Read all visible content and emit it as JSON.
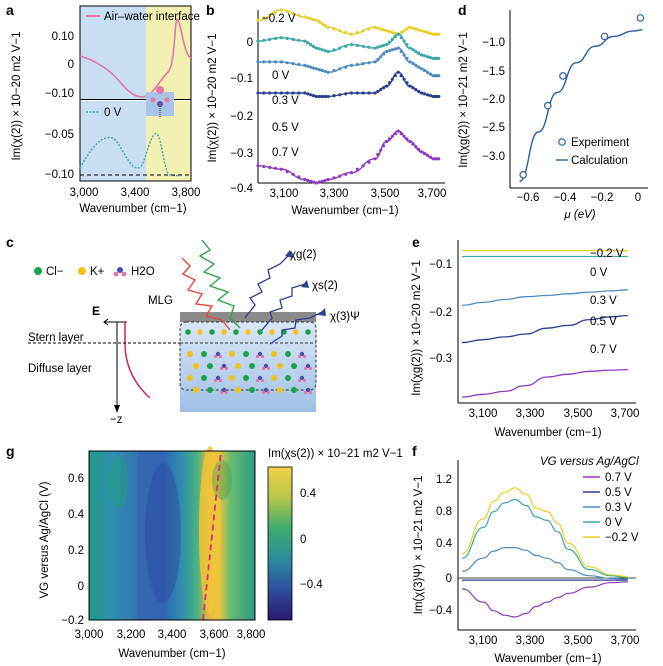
{
  "panels": {
    "a": {
      "label": "a",
      "ylabel": "Im(χ(2)) × 10−20 m2 V−1",
      "xlabel": "Wavenumber (cm−1)",
      "legend_top": "Air–water interface",
      "legend_bottom": "0 V",
      "xticks": [
        "3,000",
        "3,400",
        "3,800"
      ],
      "yticks_top": [
        "0.10",
        "0",
        "−0.10"
      ],
      "yticks_bottom": [
        "−0.05",
        "−0.10"
      ],
      "colors": {
        "air": "#e377a8",
        "zero": "#3aa8a6",
        "blue_bg": "#c9def3",
        "yellow_bg": "#f3f0b4"
      }
    },
    "b": {
      "label": "b",
      "ylabel": "Im(χ(2)) × 10−20 m2 V−1",
      "xlabel": "Wavenumber (cm−1)",
      "xticks": [
        "3,100",
        "3,300",
        "3,500",
        "3,700"
      ],
      "yticks": [
        "0",
        "−0.1",
        "−0.2",
        "−0.3",
        "−0.4"
      ],
      "series_labels": [
        "−0.2 V",
        "0 V",
        "0.3 V",
        "0.5 V",
        "0.7 V"
      ],
      "colors": [
        "#e6cf2a",
        "#3aa8a6",
        "#4e8bc4",
        "#2b3f92",
        "#8d3bbf"
      ]
    },
    "c": {
      "label": "c",
      "species": [
        "Cl−",
        "K+",
        "H2O"
      ],
      "mlg": "MLG",
      "e_label": "E",
      "stern": "Stern layer",
      "diffuse": "Diffuse layer",
      "zlabel": "−z",
      "chi_g": "χg(2)",
      "chi_s": "χs(2)",
      "chi3": "χ(3)Ψ",
      "colors": {
        "cl": "#1aa34a",
        "k": "#f2c21a",
        "water": "#e377a8",
        "field": "#c8285a"
      }
    },
    "d": {
      "label": "d",
      "ylabel": "Im(χg(2)) × 10−21 m2 V−1",
      "xlabel": "μ (eV)",
      "xticks": [
        "−0.6",
        "−0.4",
        "−0.2",
        "0"
      ],
      "yticks": [
        "−1.0",
        "−1.5",
        "−2.0",
        "−2.5",
        "−3.0"
      ],
      "legend": [
        "Experiment",
        "Calculation"
      ],
      "color": "#2b5fa8"
    },
    "e": {
      "label": "e",
      "ylabel": "Im(χg(2)) × 10−20 m2 V−1",
      "xlabel": "Wavenumber (cm−1)",
      "xticks": [
        "3,100",
        "3,300",
        "3,500",
        "3,700"
      ],
      "yticks": [
        "−0.1",
        "−0.2",
        "−0.3"
      ],
      "series_labels": [
        "−0.2 V",
        "0 V",
        "0.3 V",
        "0.5 V",
        "0.7 V"
      ],
      "colors": [
        "#e6cf2a",
        "#3aa8a6",
        "#4e8bc4",
        "#2b3f92",
        "#8d3bbf"
      ]
    },
    "f": {
      "label": "f",
      "title": "VG versus Ag/AgCl",
      "ylabel": "Im(χ(3)Ψ) × 10−21 m2 V−1",
      "xlabel": "Wavenumber (cm−1)",
      "xticks": [
        "3,100",
        "3,300",
        "3,500",
        "3,700"
      ],
      "yticks": [
        "1.2",
        "0.8",
        "0.4",
        "0",
        "−0.4"
      ],
      "legend": [
        "0.7 V",
        "0.5 V",
        "0.3 V",
        "0 V",
        "−0.2 V"
      ],
      "colors": [
        "#8d3bbf",
        "#2b3f92",
        "#4e8bc4",
        "#3aa8a6",
        "#e6cf2a"
      ]
    },
    "g": {
      "label": "g",
      "ylabel": "VG versus Ag/AgCl (V)",
      "xlabel": "Wavenumber (cm−1)",
      "xticks": [
        "3,000",
        "3,200",
        "3,400",
        "3,600",
        "3,800"
      ],
      "yticks": [
        "0.6",
        "0.4",
        "0.2",
        "0",
        "−0.2"
      ],
      "cbar_title": "Im(χs(2)) × 10−21 m2 V−1",
      "cbar_ticks": [
        "0.4",
        "0",
        "−0.4"
      ]
    }
  },
  "chart_data": [
    {
      "panel": "a",
      "type": "line",
      "series": [
        {
          "name": "Air–water interface",
          "x": [
            3000,
            3100,
            3200,
            3300,
            3400,
            3450,
            3500,
            3550,
            3600,
            3650,
            3680,
            3700,
            3720,
            3750,
            3780
          ],
          "values": [
            0.05,
            0.03,
            0.0,
            -0.04,
            -0.09,
            -0.1,
            -0.09,
            -0.07,
            -0.05,
            -0.02,
            0.02,
            0.12,
            0.05,
            -0.02,
            -0.03
          ]
        },
        {
          "name": "0 V",
          "x": [
            3000,
            3100,
            3200,
            3250,
            3300,
            3350,
            3400,
            3450,
            3500,
            3550,
            3600,
            3650,
            3700,
            3750
          ],
          "values": [
            -0.09,
            -0.065,
            -0.04,
            -0.035,
            -0.05,
            -0.075,
            -0.09,
            -0.085,
            -0.06,
            -0.04,
            -0.055,
            -0.08,
            -0.1,
            -0.1
          ]
        }
      ],
      "xlim": [
        3000,
        3800
      ]
    },
    {
      "panel": "b",
      "type": "line",
      "xlim": [
        3000,
        3800
      ],
      "ylim": [
        -0.45,
        0.05
      ],
      "x": [
        3000,
        3100,
        3200,
        3250,
        3300,
        3400,
        3500,
        3550,
        3600,
        3650,
        3700,
        3750,
        3780
      ],
      "series": [
        {
          "name": "−0.2 V",
          "values": [
            0.02,
            0.05,
            0.03,
            0.02,
            0.0,
            -0.02,
            0.0,
            -0.01,
            -0.02,
            0.0,
            -0.01,
            -0.02,
            -0.02
          ]
        },
        {
          "name": "0 V",
          "values": [
            -0.04,
            -0.03,
            -0.04,
            -0.06,
            -0.07,
            -0.05,
            -0.06,
            -0.05,
            -0.02,
            -0.06,
            -0.08,
            -0.09,
            -0.09
          ]
        },
        {
          "name": "0.3 V",
          "values": [
            -0.1,
            -0.1,
            -0.11,
            -0.12,
            -0.13,
            -0.11,
            -0.1,
            -0.07,
            -0.06,
            -0.1,
            -0.12,
            -0.14,
            -0.14
          ]
        },
        {
          "name": "0.5 V",
          "values": [
            -0.19,
            -0.19,
            -0.19,
            -0.2,
            -0.2,
            -0.19,
            -0.19,
            -0.17,
            -0.13,
            -0.17,
            -0.19,
            -0.2,
            -0.2
          ]
        },
        {
          "name": "0.7 V",
          "values": [
            -0.4,
            -0.41,
            -0.44,
            -0.45,
            -0.44,
            -0.42,
            -0.38,
            -0.33,
            -0.3,
            -0.33,
            -0.36,
            -0.38,
            -0.38
          ]
        }
      ]
    },
    {
      "panel": "d",
      "type": "scatter",
      "xlabel": "μ (eV)",
      "xlim": [
        -0.65,
        0.08
      ],
      "ylim": [
        -3.3,
        -0.6
      ],
      "series": [
        {
          "name": "Experiment",
          "x": [
            -0.58,
            -0.45,
            -0.37,
            -0.15,
            0.04
          ],
          "values": [
            -3.1,
            -2.05,
            -1.6,
            -1.0,
            -0.72
          ]
        },
        {
          "name": "Calculation",
          "x": [
            -0.6,
            -0.5,
            -0.4,
            -0.3,
            -0.2,
            -0.1,
            0.0,
            0.05
          ],
          "values": [
            -3.2,
            -2.45,
            -1.85,
            -1.4,
            -1.15,
            -1.0,
            -0.92,
            -0.9
          ]
        }
      ]
    },
    {
      "panel": "e",
      "type": "line",
      "xlim": [
        3000,
        3800
      ],
      "ylim": [
        -0.35,
        -0.08
      ],
      "x": [
        3000,
        3100,
        3200,
        3300,
        3400,
        3500,
        3600,
        3700,
        3780
      ],
      "series": [
        {
          "name": "−0.2 V",
          "values": [
            -0.09,
            -0.09,
            -0.09,
            -0.09,
            -0.09,
            -0.09,
            -0.09,
            -0.09,
            -0.09
          ]
        },
        {
          "name": "0 V",
          "values": [
            -0.1,
            -0.1,
            -0.1,
            -0.1,
            -0.1,
            -0.1,
            -0.1,
            -0.1,
            -0.1
          ]
        },
        {
          "name": "0.3 V",
          "values": [
            -0.185,
            -0.18,
            -0.175,
            -0.17,
            -0.168,
            -0.165,
            -0.162,
            -0.16,
            -0.158
          ]
        },
        {
          "name": "0.5 V",
          "values": [
            -0.25,
            -0.245,
            -0.24,
            -0.235,
            -0.225,
            -0.22,
            -0.21,
            -0.205,
            -0.203
          ]
        },
        {
          "name": "0.7 V",
          "values": [
            -0.345,
            -0.34,
            -0.335,
            -0.325,
            -0.31,
            -0.305,
            -0.3,
            -0.298,
            -0.297
          ]
        }
      ]
    },
    {
      "panel": "f",
      "type": "line",
      "xlim": [
        3000,
        3800
      ],
      "ylim": [
        -0.5,
        1.3
      ],
      "x": [
        3000,
        3100,
        3150,
        3200,
        3250,
        3300,
        3350,
        3400,
        3450,
        3500,
        3600,
        3700,
        3780
      ],
      "series": [
        {
          "name": "0.7 V",
          "values": [
            -0.1,
            -0.25,
            -0.35,
            -0.4,
            -0.42,
            -0.38,
            -0.3,
            -0.25,
            -0.2,
            -0.15,
            -0.08,
            -0.03,
            -0.02
          ]
        },
        {
          "name": "0.5 V",
          "values": [
            0,
            0,
            0,
            0,
            0,
            0,
            0,
            0,
            0,
            0,
            0,
            0,
            0
          ]
        },
        {
          "name": "0.3 V",
          "values": [
            0.1,
            0.25,
            0.33,
            0.37,
            0.37,
            0.34,
            0.28,
            0.25,
            0.2,
            0.12,
            0.05,
            0.02,
            0.01
          ]
        },
        {
          "name": "0 V",
          "values": [
            0.25,
            0.6,
            0.78,
            0.88,
            0.92,
            0.85,
            0.72,
            0.68,
            0.55,
            0.35,
            0.12,
            0.05,
            0.03
          ]
        },
        {
          "name": "−0.2 V",
          "values": [
            0.3,
            0.7,
            0.9,
            1.0,
            1.05,
            0.98,
            0.82,
            0.78,
            0.65,
            0.42,
            0.15,
            0.06,
            0.04
          ]
        }
      ]
    },
    {
      "panel": "g",
      "type": "heatmap",
      "xlim": [
        3000,
        3800
      ],
      "ylim": [
        -0.2,
        0.7
      ],
      "colorbar_range": [
        -0.6,
        0.6
      ],
      "peak_trend_x": [
        3570,
        3640
      ],
      "peak_trend_y": [
        -0.2,
        0.7
      ]
    }
  ]
}
